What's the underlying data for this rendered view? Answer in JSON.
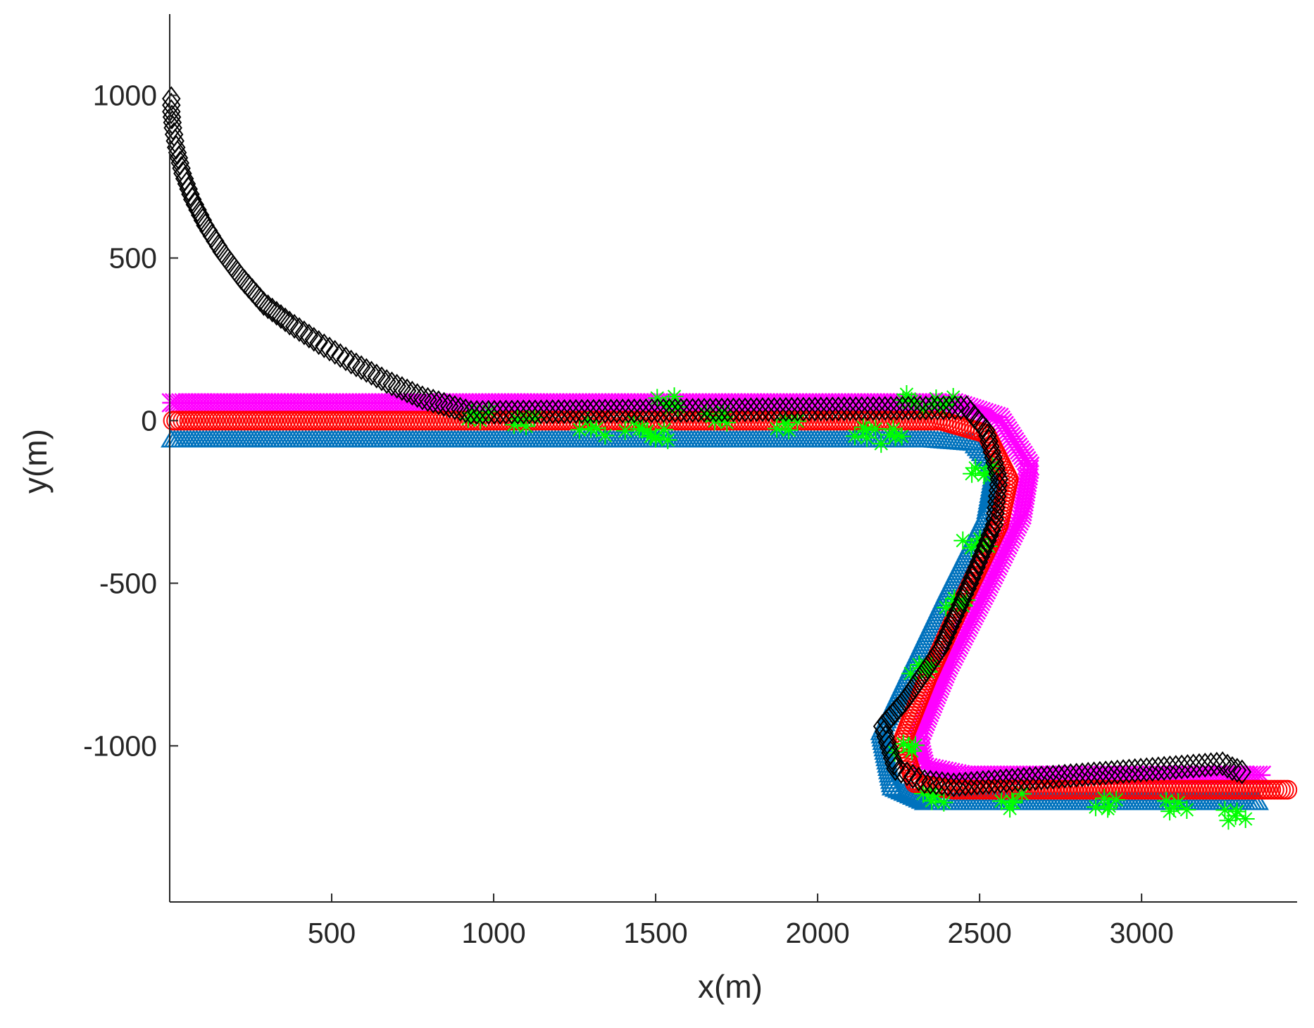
{
  "chart_data": {
    "type": "scatter",
    "title": "",
    "xlabel": "x(m)",
    "ylabel": "y(m)",
    "xlim": [
      0,
      3480
    ],
    "ylim": [
      -1480,
      1250
    ],
    "xticks": [
      500,
      1000,
      1500,
      2000,
      2500,
      3000
    ],
    "yticks": [
      1000,
      500,
      0,
      -500,
      -1000
    ],
    "x_tick_labels": [
      "500",
      "1000",
      "1500",
      "2000",
      "2500",
      "3000"
    ],
    "y_tick_labels": [
      "1000",
      "500",
      "0",
      "-500",
      "-1000"
    ],
    "grid": false,
    "legend": "none",
    "series": [
      {
        "color": "#0072bd",
        "marker": "triangle",
        "points": [
          [
            5,
            -60
          ],
          [
            300,
            -60
          ],
          [
            600,
            -60
          ],
          [
            900,
            -60
          ],
          [
            1200,
            -60
          ],
          [
            1500,
            -60
          ],
          [
            1800,
            -60
          ],
          [
            2100,
            -60
          ],
          [
            2350,
            -60
          ],
          [
            2480,
            -70
          ],
          [
            2545,
            -150
          ],
          [
            2520,
            -290
          ],
          [
            2400,
            -530
          ],
          [
            2290,
            -760
          ],
          [
            2195,
            -960
          ],
          [
            2230,
            -1130
          ],
          [
            2330,
            -1175
          ],
          [
            2600,
            -1175
          ],
          [
            2900,
            -1175
          ],
          [
            3200,
            -1175
          ],
          [
            3360,
            -1175
          ]
        ]
      },
      {
        "color": "#ff00ff",
        "marker": "cross",
        "points": [
          [
            5,
            55
          ],
          [
            300,
            55
          ],
          [
            600,
            55
          ],
          [
            900,
            55
          ],
          [
            1200,
            55
          ],
          [
            1500,
            55
          ],
          [
            1800,
            55
          ],
          [
            2100,
            55
          ],
          [
            2420,
            55
          ],
          [
            2560,
            10
          ],
          [
            2655,
            -140
          ],
          [
            2630,
            -290
          ],
          [
            2520,
            -520
          ],
          [
            2400,
            -760
          ],
          [
            2310,
            -980
          ],
          [
            2330,
            -1065
          ],
          [
            2450,
            -1090
          ],
          [
            2700,
            -1090
          ],
          [
            3000,
            -1090
          ],
          [
            3300,
            -1090
          ],
          [
            3370,
            -1090
          ]
        ]
      },
      {
        "color": "#ff0000",
        "marker": "circle",
        "points": [
          [
            10,
            0
          ],
          [
            300,
            0
          ],
          [
            600,
            0
          ],
          [
            900,
            0
          ],
          [
            1200,
            0
          ],
          [
            1500,
            0
          ],
          [
            1800,
            0
          ],
          [
            2100,
            0
          ],
          [
            2380,
            0
          ],
          [
            2520,
            -40
          ],
          [
            2590,
            -180
          ],
          [
            2560,
            -320
          ],
          [
            2450,
            -550
          ],
          [
            2340,
            -790
          ],
          [
            2260,
            -990
          ],
          [
            2300,
            -1115
          ],
          [
            2420,
            -1135
          ],
          [
            2700,
            -1135
          ],
          [
            3000,
            -1135
          ],
          [
            3300,
            -1135
          ],
          [
            3450,
            -1135
          ]
        ]
      },
      {
        "color": "#00ff00",
        "marker": "asterisk",
        "points": [
          [
            950,
            20
          ],
          [
            1100,
            5
          ],
          [
            1300,
            -25
          ],
          [
            1450,
            -25
          ],
          [
            1500,
            -50
          ],
          [
            1540,
            55
          ],
          [
            1700,
            10
          ],
          [
            1900,
            -10
          ],
          [
            2150,
            -30
          ],
          [
            2240,
            -50
          ],
          [
            2290,
            60
          ],
          [
            2390,
            50
          ],
          [
            2520,
            -160
          ],
          [
            2490,
            -380
          ],
          [
            2420,
            -560
          ],
          [
            2320,
            -760
          ],
          [
            2280,
            -1000
          ],
          [
            2350,
            -1150
          ],
          [
            2600,
            -1170
          ],
          [
            2900,
            -1185
          ],
          [
            3100,
            -1190
          ],
          [
            3290,
            -1215
          ]
        ]
      },
      {
        "color": "#000000",
        "marker": "diamond",
        "points": [
          [
            5,
            990
          ],
          [
            5,
            950
          ],
          [
            10,
            900
          ],
          [
            20,
            840
          ],
          [
            40,
            760
          ],
          [
            70,
            680
          ],
          [
            110,
            600
          ],
          [
            160,
            520
          ],
          [
            220,
            440
          ],
          [
            290,
            360
          ],
          [
            370,
            300
          ],
          [
            460,
            240
          ],
          [
            560,
            180
          ],
          [
            670,
            120
          ],
          [
            780,
            70
          ],
          [
            880,
            40
          ],
          [
            930,
            25
          ],
          [
            2460,
            40
          ],
          [
            2520,
            -30
          ],
          [
            2560,
            -180
          ],
          [
            2545,
            -320
          ],
          [
            2470,
            -500
          ],
          [
            2380,
            -700
          ],
          [
            2270,
            -860
          ],
          [
            2200,
            -940
          ],
          [
            2240,
            -1070
          ],
          [
            2330,
            -1110
          ],
          [
            2420,
            -1120
          ],
          [
            3250,
            -1055
          ],
          [
            3280,
            -1070
          ],
          [
            3310,
            -1080
          ]
        ]
      }
    ]
  }
}
